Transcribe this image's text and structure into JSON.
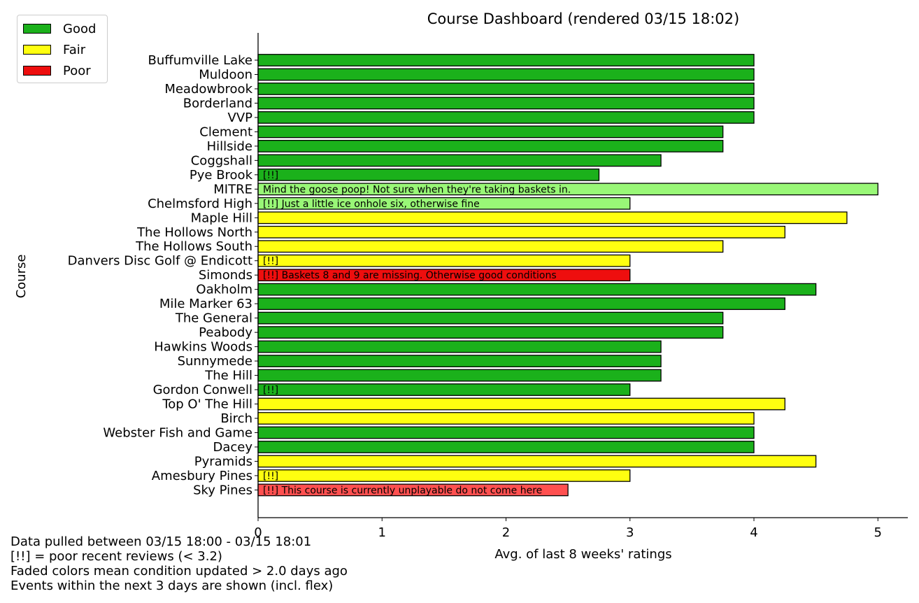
{
  "chart_data": {
    "type": "bar",
    "orientation": "horizontal",
    "title": "Course Dashboard (rendered 03/15 18:02)",
    "xlabel": "Avg. of last 8 weeks' ratings",
    "ylabel": "Course",
    "xlim": [
      0,
      5.25
    ],
    "xticks": [
      0,
      1,
      2,
      3,
      4,
      5
    ],
    "grid": false,
    "legend_position": "top-left",
    "legend": [
      {
        "label": "Good",
        "color": "#1bb11b"
      },
      {
        "label": "Fair",
        "color": "#ffff10"
      },
      {
        "label": "Poor",
        "color": "#ee0e0e"
      }
    ],
    "faded_colors": {
      "Good": "#99f777",
      "Poor": "#ff5050"
    },
    "bars": [
      {
        "course": "Buffumville Lake",
        "value": 4.0,
        "condition": "Good",
        "faded": false,
        "annotation": ""
      },
      {
        "course": "Muldoon",
        "value": 4.0,
        "condition": "Good",
        "faded": false,
        "annotation": ""
      },
      {
        "course": "Meadowbrook",
        "value": 4.0,
        "condition": "Good",
        "faded": false,
        "annotation": ""
      },
      {
        "course": "Borderland",
        "value": 4.0,
        "condition": "Good",
        "faded": false,
        "annotation": ""
      },
      {
        "course": "VVP",
        "value": 4.0,
        "condition": "Good",
        "faded": false,
        "annotation": ""
      },
      {
        "course": "Clement",
        "value": 3.75,
        "condition": "Good",
        "faded": false,
        "annotation": ""
      },
      {
        "course": "Hillside",
        "value": 3.75,
        "condition": "Good",
        "faded": false,
        "annotation": ""
      },
      {
        "course": "Coggshall",
        "value": 3.25,
        "condition": "Good",
        "faded": false,
        "annotation": ""
      },
      {
        "course": "Pye Brook",
        "value": 2.75,
        "condition": "Good",
        "faded": false,
        "annotation": "[!!]"
      },
      {
        "course": "MITRE",
        "value": 5.0,
        "condition": "Good",
        "faded": true,
        "annotation": "Mind the goose poop! Not sure when they're taking baskets in."
      },
      {
        "course": "Chelmsford High",
        "value": 3.0,
        "condition": "Good",
        "faded": true,
        "annotation": "[!!] Just a little ice onhole six, otherwise fine"
      },
      {
        "course": "Maple Hill",
        "value": 4.75,
        "condition": "Fair",
        "faded": false,
        "annotation": ""
      },
      {
        "course": "The Hollows North",
        "value": 4.25,
        "condition": "Fair",
        "faded": false,
        "annotation": ""
      },
      {
        "course": "The Hollows South",
        "value": 3.75,
        "condition": "Fair",
        "faded": false,
        "annotation": ""
      },
      {
        "course": "Danvers Disc Golf @ Endicott",
        "value": 3.0,
        "condition": "Fair",
        "faded": false,
        "annotation": "[!!]"
      },
      {
        "course": "Simonds",
        "value": 3.0,
        "condition": "Poor",
        "faded": false,
        "annotation": "[!!] Baskets 8 and 9 are missing. Otherwise good conditions"
      },
      {
        "course": "Oakholm",
        "value": 4.5,
        "condition": "Good",
        "faded": false,
        "annotation": ""
      },
      {
        "course": "Mile Marker 63",
        "value": 4.25,
        "condition": "Good",
        "faded": false,
        "annotation": ""
      },
      {
        "course": "The General",
        "value": 3.75,
        "condition": "Good",
        "faded": false,
        "annotation": ""
      },
      {
        "course": "Peabody",
        "value": 3.75,
        "condition": "Good",
        "faded": false,
        "annotation": ""
      },
      {
        "course": "Hawkins Woods",
        "value": 3.25,
        "condition": "Good",
        "faded": false,
        "annotation": ""
      },
      {
        "course": "Sunnymede",
        "value": 3.25,
        "condition": "Good",
        "faded": false,
        "annotation": ""
      },
      {
        "course": "The Hill",
        "value": 3.25,
        "condition": "Good",
        "faded": false,
        "annotation": ""
      },
      {
        "course": "Gordon Conwell",
        "value": 3.0,
        "condition": "Good",
        "faded": false,
        "annotation": "[!!]"
      },
      {
        "course": "Top O' The Hill",
        "value": 4.25,
        "condition": "Fair",
        "faded": false,
        "annotation": ""
      },
      {
        "course": "Birch",
        "value": 4.0,
        "condition": "Fair",
        "faded": false,
        "annotation": ""
      },
      {
        "course": "Webster Fish and Game",
        "value": 4.0,
        "condition": "Good",
        "faded": false,
        "annotation": ""
      },
      {
        "course": "Dacey",
        "value": 4.0,
        "condition": "Good",
        "faded": false,
        "annotation": ""
      },
      {
        "course": "Pyramids",
        "value": 4.5,
        "condition": "Fair",
        "faded": false,
        "annotation": ""
      },
      {
        "course": "Amesbury Pines",
        "value": 3.0,
        "condition": "Fair",
        "faded": false,
        "annotation": "[!!]"
      },
      {
        "course": "Sky Pines",
        "value": 2.5,
        "condition": "Poor",
        "faded": true,
        "annotation": "[!!] This course is currently unplayable do not come here"
      }
    ]
  },
  "footnotes": [
    "Data pulled between 03/15 18:00 - 03/15 18:01",
    "[!!] = poor recent reviews (< 3.2)",
    "Faded colors mean condition updated > 2.0 days ago",
    "Events within the next 3 days are shown (incl. flex)"
  ]
}
